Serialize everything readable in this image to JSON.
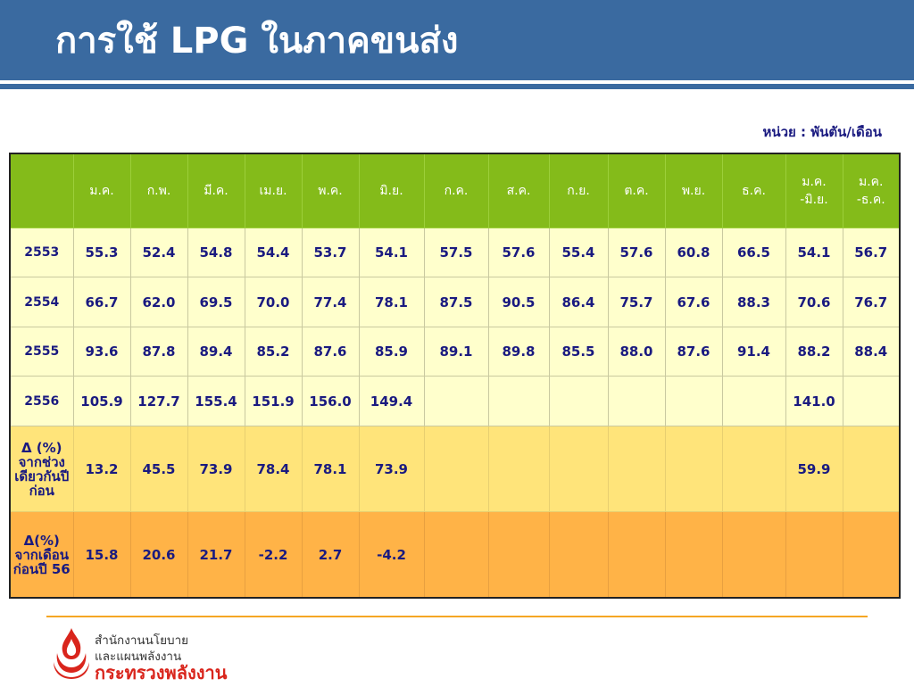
{
  "title": "การใช้ LPG ในภาคขนส่ง",
  "unit": "หน่วย : พันตัน/เดือน",
  "table": {
    "headers": [
      "",
      "ม.ค.",
      "ก.พ.",
      "มี.ค.",
      "เม.ย.",
      "พ.ค.",
      "มิ.ย.",
      "ก.ค.",
      "ส.ค.",
      "ก.ย.",
      "ต.ค.",
      "พ.ย.",
      "ธ.ค."
    ],
    "header_ytd": [
      "ม.ค.",
      "-มิ.ย."
    ],
    "header_full": [
      "ม.ค.",
      "-ธ.ค."
    ],
    "rows": [
      {
        "label": "2553",
        "cells": [
          "55.3",
          "52.4",
          "54.8",
          "54.4",
          "53.7",
          "54.1",
          "57.5",
          "57.6",
          "55.4",
          "57.6",
          "60.8",
          "66.5",
          "54.1",
          "56.7"
        ]
      },
      {
        "label": "2554",
        "cells": [
          "66.7",
          "62.0",
          "69.5",
          "70.0",
          "77.4",
          "78.1",
          "87.5",
          "90.5",
          "86.4",
          "75.7",
          "67.6",
          "88.3",
          "70.6",
          "76.7"
        ]
      },
      {
        "label": "2555",
        "cells": [
          "93.6",
          "87.8",
          "89.4",
          "85.2",
          "87.6",
          "85.9",
          "89.1",
          "89.8",
          "85.5",
          "88.0",
          "87.6",
          "91.4",
          "88.2",
          "88.4"
        ]
      },
      {
        "label": "2556",
        "cells": [
          "105.9",
          "127.7",
          "155.4",
          "151.9",
          "156.0",
          "149.4",
          "",
          "",
          "",
          "",
          "",
          "",
          "141.0",
          ""
        ]
      }
    ],
    "yoy": {
      "label": [
        "Δ (%)",
        "จากช่วง",
        "เดียวกันปี",
        "ก่อน"
      ],
      "cells": [
        "13.2",
        "45.5",
        "73.9",
        "78.4",
        "78.1",
        "73.9",
        "",
        "",
        "",
        "",
        "",
        "",
        "59.9",
        ""
      ]
    },
    "mom": {
      "label": [
        "Δ(%)",
        "จากเดือน",
        "ก่อนปี 56"
      ],
      "cells": [
        "15.8",
        "20.6",
        "21.7",
        "-2.2",
        "2.7",
        "-4.2",
        "",
        "",
        "",
        "",
        "",
        "",
        "",
        ""
      ]
    }
  },
  "footer": {
    "org_line1": "สำนักงานนโยบาย",
    "org_line2": "และแผนพลังงาน",
    "org_line3": "กระทรวงพลังงาน"
  },
  "colors": {
    "header_blue": "#3a6aa0",
    "table_header_green": "#84bb1a",
    "row_light_yellow": "#ffffcc",
    "row_yoy_yellow": "#ffe47a",
    "row_mom_orange": "#ffb347",
    "text_navy": "#1a1a80",
    "footer_orange": "#f5a623",
    "logo_red": "#d9251c"
  }
}
